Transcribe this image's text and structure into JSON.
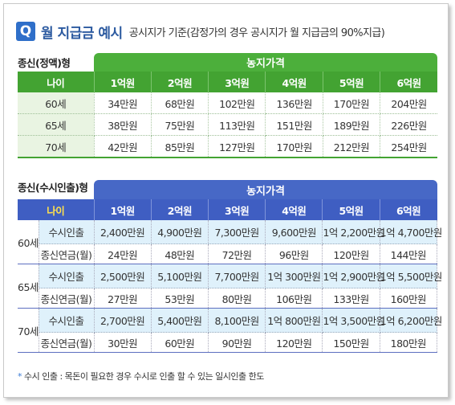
{
  "header": {
    "badge": "Q",
    "title": "월 지급금 예시",
    "subtitle": "공시지가 기준(감정가의 경우 공시지가 월 지급금의 90%지급)"
  },
  "table1": {
    "section_label": "종신(정액)형",
    "band_label": "농지가격",
    "age_header": "나이",
    "columns": [
      "1억원",
      "2억원",
      "3억원",
      "4억원",
      "5억원",
      "6억원"
    ],
    "rows": [
      {
        "age": "60세",
        "values": [
          "34만원",
          "68만원",
          "102만원",
          "136만원",
          "170만원",
          "204만원"
        ]
      },
      {
        "age": "65세",
        "values": [
          "38만원",
          "75만원",
          "113만원",
          "151만원",
          "189만원",
          "226만원"
        ]
      },
      {
        "age": "70세",
        "values": [
          "42만원",
          "85만원",
          "127만원",
          "170만원",
          "212만원",
          "254만원"
        ]
      }
    ]
  },
  "table2": {
    "section_label": "종신(수시인출)형",
    "band_label": "농지가격",
    "age_header": "나이",
    "columns": [
      "1억원",
      "2억원",
      "3억원",
      "4억원",
      "5억원",
      "6억원"
    ],
    "groups": [
      {
        "age": "60세",
        "withdraw_label": "수시인출",
        "withdraw": [
          "2,400만원",
          "4,900만원",
          "7,300만원",
          "9,600만원",
          "1억 2,200만원",
          "1억 4,700만원"
        ],
        "annuity_label": "종신연금(월)",
        "annuity": [
          "24만원",
          "48만원",
          "72만원",
          "96만원",
          "120만원",
          "144만원"
        ]
      },
      {
        "age": "65세",
        "withdraw_label": "수시인출",
        "withdraw": [
          "2,500만원",
          "5,100만원",
          "7,700만원",
          "1억 300만원",
          "1억 2,900만원",
          "1억 5,500만원"
        ],
        "annuity_label": "종신연금(월)",
        "annuity": [
          "27만원",
          "53만원",
          "80만원",
          "106만원",
          "133만원",
          "160만원"
        ]
      },
      {
        "age": "70세",
        "withdraw_label": "수시인출",
        "withdraw": [
          "2,700만원",
          "5,400만원",
          "8,100만원",
          "1억 800만원",
          "1억 3,500만원",
          "1억 6,200만원"
        ],
        "annuity_label": "종신연금(월)",
        "annuity": [
          "30만원",
          "60만원",
          "90만원",
          "120만원",
          "150만원",
          "180만원"
        ]
      }
    ]
  },
  "footnote": {
    "star": "*",
    "text": "수시 인출 : 목돈이 필요한 경우 수시로 인출 할 수 있는 일시인출 한도"
  },
  "colors": {
    "green": "#43a332",
    "blue": "#3f5ec2",
    "light_blue": "#dff1fb",
    "light_green": "#e9f4e2"
  }
}
